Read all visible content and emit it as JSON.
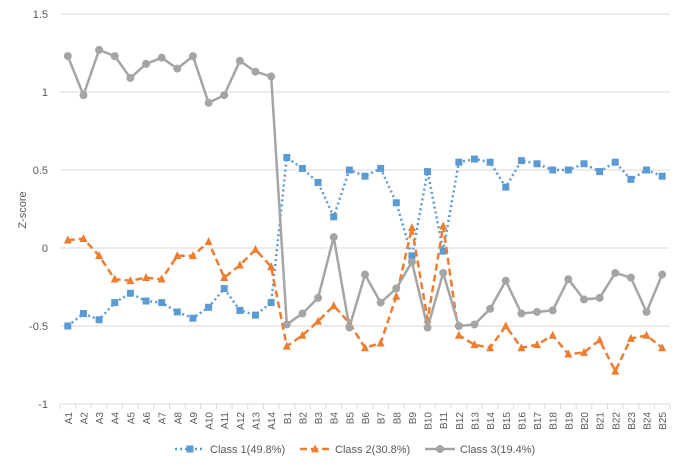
{
  "chart_data": {
    "type": "line",
    "title": "",
    "xlabel": "",
    "ylabel": "Z-score",
    "ylim": [
      -1,
      1.5
    ],
    "yticks": [
      -1,
      -0.5,
      0,
      0.5,
      1,
      1.5
    ],
    "ytick_labels": [
      "-1",
      "-0.5",
      "0",
      "0.5",
      "1",
      "1.5"
    ],
    "grid": "horizontal",
    "legend_position": "bottom",
    "categories": [
      "A1",
      "A2",
      "A3",
      "A4",
      "A5",
      "A6",
      "A7",
      "A8",
      "A9",
      "A10",
      "A11",
      "A12",
      "A13",
      "A14",
      "B1",
      "B2",
      "B3",
      "B4",
      "B5",
      "B6",
      "B7",
      "B8",
      "B9",
      "B10",
      "B11",
      "B12",
      "B13",
      "B14",
      "B15",
      "B16",
      "B17",
      "B18",
      "B19",
      "B20",
      "B21",
      "B22",
      "B23",
      "B24",
      "B25"
    ],
    "series": [
      {
        "name": "Class 1(49.8%)",
        "color": "#5B9BD5",
        "line_style": "dotted",
        "marker": "square",
        "values": [
          -0.5,
          -0.42,
          -0.46,
          -0.35,
          -0.29,
          -0.34,
          -0.35,
          -0.41,
          -0.45,
          -0.38,
          -0.26,
          -0.4,
          -0.43,
          -0.35,
          0.58,
          0.51,
          0.42,
          0.2,
          0.5,
          0.46,
          0.51,
          0.29,
          -0.05,
          0.49,
          -0.02,
          0.55,
          0.57,
          0.55,
          0.39,
          0.56,
          0.54,
          0.5,
          0.5,
          0.54,
          0.49,
          0.55,
          0.44,
          0.5,
          0.46
        ]
      },
      {
        "name": "Class 2(30.8%)",
        "color": "#ED7D31",
        "line_style": "dashed",
        "marker": "triangle",
        "values": [
          0.05,
          0.06,
          -0.05,
          -0.2,
          -0.21,
          -0.19,
          -0.2,
          -0.05,
          -0.05,
          0.04,
          -0.19,
          -0.11,
          -0.01,
          -0.12,
          -0.63,
          -0.56,
          -0.47,
          -0.37,
          -0.48,
          -0.64,
          -0.61,
          -0.31,
          0.13,
          -0.46,
          0.14,
          -0.56,
          -0.62,
          -0.64,
          -0.5,
          -0.64,
          -0.62,
          -0.56,
          -0.68,
          -0.67,
          -0.59,
          -0.79,
          -0.58,
          -0.56,
          -0.64
        ]
      },
      {
        "name": "Class 3(19.4%)",
        "color": "#A5A5A5",
        "line_style": "solid",
        "marker": "circle",
        "values": [
          1.23,
          0.98,
          1.27,
          1.23,
          1.09,
          1.18,
          1.22,
          1.15,
          1.23,
          0.93,
          0.98,
          1.2,
          1.13,
          1.1,
          -0.49,
          -0.42,
          -0.32,
          0.07,
          -0.51,
          -0.17,
          -0.35,
          -0.26,
          -0.09,
          -0.51,
          -0.16,
          -0.5,
          -0.49,
          -0.39,
          -0.21,
          -0.42,
          -0.41,
          -0.4,
          -0.2,
          -0.33,
          -0.32,
          -0.16,
          -0.19,
          -0.41,
          -0.17
        ]
      }
    ]
  }
}
